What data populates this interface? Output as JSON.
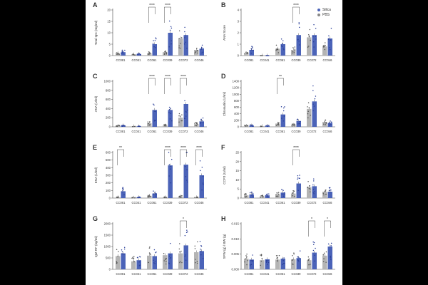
{
  "colors": {
    "silica": "#4b63b8",
    "pbs": "#b4b4b4",
    "axis": "#444444",
    "point_silica": "#2a3f99",
    "point_pbs": "#555555"
  },
  "legend": {
    "items": [
      "Silica",
      "PBS"
    ]
  },
  "chart_data": [
    {
      "letter": "A",
      "type": "bar",
      "ylabel": "Total IgG (mg/ml)",
      "categories": [
        "CC081",
        "CC041",
        "CC061",
        "CC039",
        "CC072",
        "CC046"
      ],
      "yticks": [
        "0",
        "5",
        "10",
        "15",
        "20"
      ],
      "ylim": [
        0,
        20
      ],
      "series": [
        {
          "name": "PBS",
          "values": [
            1.0,
            0.5,
            1.0,
            1.5,
            7.5,
            2.5
          ]
        },
        {
          "name": "Silica",
          "values": [
            1.5,
            0.7,
            5.0,
            10.0,
            9.0,
            3.0
          ]
        }
      ],
      "sig": [
        {
          "cat": 2,
          "label": "****"
        },
        {
          "cat": 3,
          "label": "****"
        }
      ]
    },
    {
      "letter": "B",
      "type": "bar",
      "ylabel": "ANA Score",
      "categories": [
        "CC081",
        "CC041",
        "CC061",
        "CC039",
        "CC072",
        "CC046"
      ],
      "yticks": [
        "0",
        "1",
        "2",
        "3",
        "4"
      ],
      "ylim": [
        0,
        4
      ],
      "series": [
        {
          "name": "PBS",
          "values": [
            0.2,
            0.0,
            0.6,
            0.5,
            1.6,
            0.8
          ]
        },
        {
          "name": "Silica",
          "values": [
            0.5,
            0.0,
            1.0,
            1.8,
            1.8,
            1.5
          ]
        }
      ],
      "sig": [
        {
          "cat": 3,
          "label": "****"
        }
      ]
    },
    {
      "letter": "C",
      "type": "bar",
      "ylabel": "ANA (U/ml)",
      "categories": [
        "CC081",
        "CC041",
        "CC061",
        "CC039",
        "CC072",
        "CC046"
      ],
      "yticks": [
        "0",
        "200",
        "400",
        "600",
        "800",
        "1000"
      ],
      "ylim": [
        0,
        1000
      ],
      "series": [
        {
          "name": "PBS",
          "values": [
            20,
            10,
            80,
            30,
            200,
            60
          ]
        },
        {
          "name": "Silica",
          "values": [
            30,
            10,
            370,
            370,
            500,
            120
          ]
        }
      ],
      "sig": [
        {
          "cat": 2,
          "label": "****"
        },
        {
          "cat": 3,
          "label": "****"
        },
        {
          "cat": 4,
          "label": "****"
        }
      ]
    },
    {
      "letter": "D",
      "type": "bar",
      "ylabel": "Chromatin (U/ml)",
      "categories": [
        "CC081",
        "CC041",
        "CC061",
        "CC039",
        "CC072",
        "CC046"
      ],
      "yticks": [
        "0",
        "200",
        "400",
        "600",
        "800",
        "1000",
        "1200",
        "1400"
      ],
      "ylim": [
        0,
        1400
      ],
      "series": [
        {
          "name": "PBS",
          "values": [
            30,
            20,
            100,
            60,
            550,
            150
          ]
        },
        {
          "name": "Silica",
          "values": [
            40,
            30,
            380,
            180,
            780,
            120
          ]
        }
      ],
      "sig": [
        {
          "cat": 2,
          "label": "**"
        }
      ]
    },
    {
      "letter": "E",
      "type": "bar",
      "ylabel": "ENA (U/ml)",
      "categories": [
        "CC081",
        "CC041",
        "CC061",
        "CC039",
        "CC072",
        "CC046"
      ],
      "yticks": [
        "0",
        "100",
        "200",
        "300",
        "400",
        "500",
        "600"
      ],
      "ylim": [
        0,
        600
      ],
      "series": [
        {
          "name": "PBS",
          "values": [
            10,
            5,
            30,
            10,
            20,
            10
          ]
        },
        {
          "name": "Silica",
          "values": [
            90,
            10,
            60,
            430,
            440,
            300
          ]
        }
      ],
      "sig": [
        {
          "cat": 0,
          "label": "**"
        },
        {
          "cat": 3,
          "label": "****"
        },
        {
          "cat": 4,
          "label": "****"
        },
        {
          "cat": 5,
          "label": "****"
        }
      ]
    },
    {
      "letter": "F",
      "type": "bar",
      "ylabel": "CCP3 (U/ml)",
      "categories": [
        "CC081",
        "CC041",
        "CC061",
        "CC039",
        "CC072",
        "CC046"
      ],
      "yticks": [
        "0",
        "5",
        "10",
        "15",
        "20",
        "25"
      ],
      "ylim": [
        0,
        25
      ],
      "series": [
        {
          "name": "PBS",
          "values": [
            1.5,
            1.0,
            2.0,
            2.5,
            6.0,
            3.5
          ]
        },
        {
          "name": "Silica",
          "values": [
            2.0,
            1.5,
            3.0,
            8.0,
            6.5,
            3.5
          ]
        }
      ],
      "sig": [
        {
          "cat": 3,
          "label": "****"
        }
      ]
    },
    {
      "letter": "G",
      "type": "bar",
      "ylabel": "IgM RF (ng/ml)",
      "categories": [
        "CC081",
        "CC041",
        "CC061",
        "CC039",
        "CC072",
        "CC046"
      ],
      "yticks": [
        "0",
        "500",
        "1000",
        "1500",
        "2000"
      ],
      "ylim": [
        0,
        2000
      ],
      "series": [
        {
          "name": "PBS",
          "values": [
            580,
            350,
            600,
            620,
            700,
            750
          ]
        },
        {
          "name": "Silica",
          "values": [
            700,
            400,
            580,
            700,
            1050,
            800
          ]
        }
      ],
      "sig": [
        {
          "cat": 4,
          "label": "*"
        }
      ]
    },
    {
      "letter": "H",
      "type": "bar",
      "ylabel": "SPW (g) / BW (g)",
      "categories": [
        "CC081",
        "CC041",
        "CC061",
        "CC039",
        "CC072",
        "CC046"
      ],
      "yticks": [
        "0.000",
        "0.005",
        "0.010",
        "0.015"
      ],
      "ylim": [
        0,
        0.015
      ],
      "series": [
        {
          "name": "PBS",
          "values": [
            0.0035,
            0.003,
            0.0032,
            0.0033,
            0.003,
            0.0045
          ]
        },
        {
          "name": "Silica",
          "values": [
            0.0032,
            0.0033,
            0.0035,
            0.0037,
            0.0055,
            0.0075
          ]
        }
      ],
      "sig": [
        {
          "cat": 4,
          "label": "*"
        },
        {
          "cat": 5,
          "label": "*"
        }
      ]
    }
  ]
}
